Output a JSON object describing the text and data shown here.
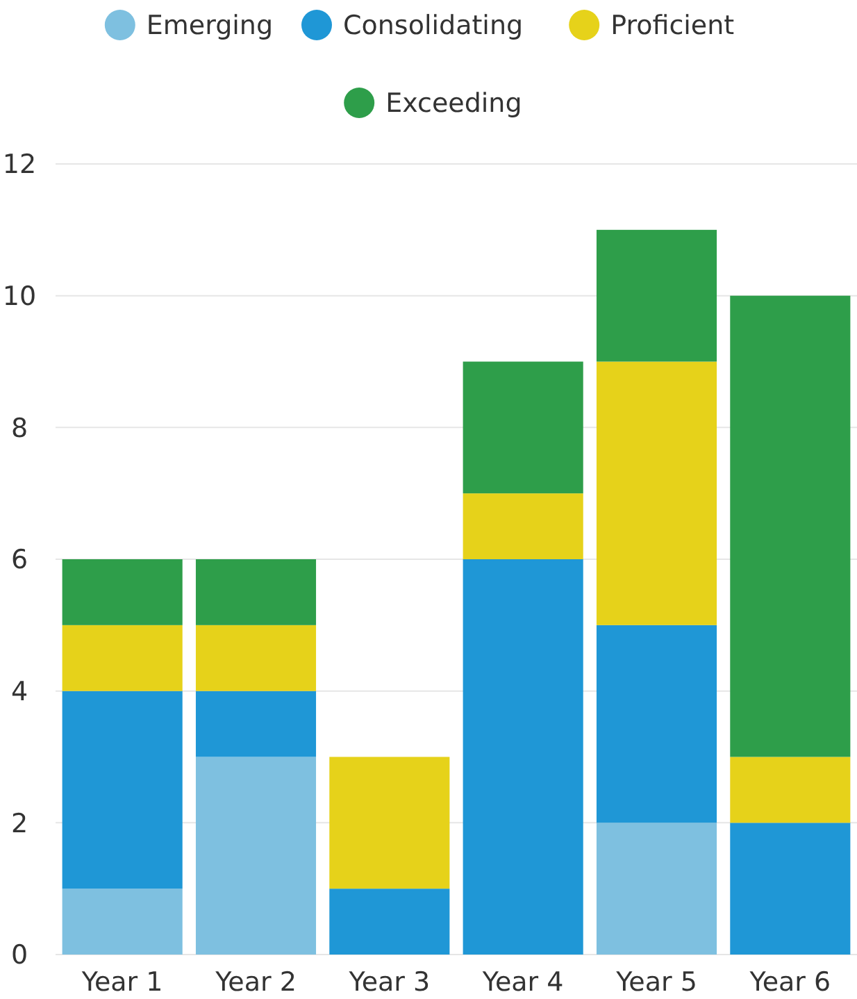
{
  "chart_data": {
    "type": "bar",
    "stacked": true,
    "categories": [
      "Year 1",
      "Year 2",
      "Year 3",
      "Year 4",
      "Year 5",
      "Year 6"
    ],
    "series": [
      {
        "name": "Emerging",
        "color": "#7ec0e0",
        "values": [
          1,
          3,
          0,
          0,
          2,
          0
        ]
      },
      {
        "name": "Consolidating",
        "color": "#1f97d6",
        "values": [
          3,
          1,
          1,
          6,
          3,
          2
        ]
      },
      {
        "name": "Proficient",
        "color": "#e6d21a",
        "values": [
          1,
          1,
          2,
          1,
          4,
          1
        ]
      },
      {
        "name": "Exceeding",
        "color": "#2e9e4a",
        "values": [
          1,
          1,
          0,
          2,
          2,
          7
        ]
      }
    ],
    "ylim": [
      0,
      12
    ],
    "yticks": [
      0,
      2,
      4,
      6,
      8,
      10,
      12
    ],
    "grid": "y",
    "legend": "top",
    "marker": "circle"
  }
}
